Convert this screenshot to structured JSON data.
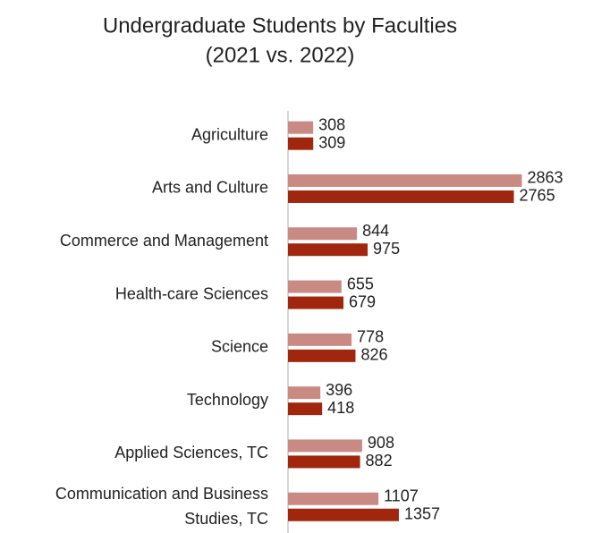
{
  "chart_data": {
    "type": "bar",
    "orientation": "horizontal",
    "title": "Undergraduate Students by Faculties",
    "subtitle": "(2021 vs. 2022)",
    "categories": [
      "Agriculture",
      "Arts and Culture",
      "Commerce and Management",
      "Health-care Sciences",
      "Science",
      "Technology",
      "Applied Sciences, TC",
      "Communication and Business Studies, TC"
    ],
    "series": [
      {
        "color": "#c98a84",
        "values": [
          308,
          2863,
          844,
          655,
          778,
          396,
          908,
          1107
        ]
      },
      {
        "color": "#a0260e",
        "values": [
          309,
          2765,
          975,
          679,
          826,
          418,
          882,
          1357
        ]
      }
    ],
    "xlim": [
      0,
      3000
    ]
  }
}
